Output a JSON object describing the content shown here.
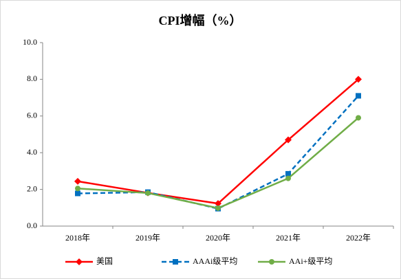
{
  "chart_data": {
    "type": "line",
    "title": "CPI增幅（%）",
    "categories": [
      "2018年",
      "2019年",
      "2020年",
      "2021年",
      "2022年"
    ],
    "series": [
      {
        "name": "美国",
        "color": "#ff0000",
        "marker": "diamond",
        "line_style": "solid",
        "values": [
          2.44,
          1.81,
          1.23,
          4.7,
          8.0
        ]
      },
      {
        "name": "AAAi级平均",
        "color": "#0070c0",
        "marker": "square",
        "line_style": "dashed",
        "values": [
          1.78,
          1.85,
          0.95,
          2.85,
          7.1
        ]
      },
      {
        "name": "AAi+级平均",
        "color": "#70ad47",
        "marker": "circle",
        "line_style": "solid",
        "values": [
          2.05,
          1.8,
          0.98,
          2.6,
          5.9
        ]
      }
    ],
    "ylim": [
      0,
      10
    ],
    "yticks": [
      {
        "value": 0,
        "label": "0.0"
      },
      {
        "value": 2,
        "label": "2.0"
      },
      {
        "value": 4,
        "label": "4.0"
      },
      {
        "value": 6,
        "label": "6.0"
      },
      {
        "value": 8,
        "label": "8.0"
      },
      {
        "value": 10,
        "label": "10.0"
      }
    ],
    "grid": false,
    "legend": "bottom"
  }
}
